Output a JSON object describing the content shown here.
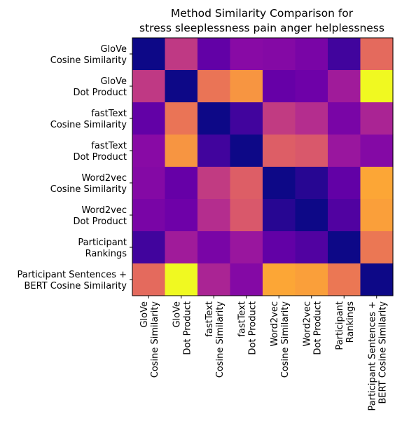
{
  "chart_data": {
    "type": "heatmap",
    "title_lines": [
      "Method Similarity Comparison for",
      "stress sleeplessness pain anger helplessness"
    ],
    "labels": [
      [
        "GloVe",
        "Cosine Similarity"
      ],
      [
        "GloVe",
        "Dot Product"
      ],
      [
        "fastText",
        "Cosine Similarity"
      ],
      [
        "fastText",
        "Dot Product"
      ],
      [
        "Word2vec",
        "Cosine Similarity"
      ],
      [
        "Word2vec",
        "Dot Product"
      ],
      [
        "Participant",
        "Rankings"
      ],
      [
        "Participant Sentences +",
        "BERT Cosine Similarity"
      ]
    ],
    "colormap": "plasma",
    "matrix": [
      [
        0.0,
        0.45,
        0.18,
        0.28,
        0.27,
        0.24,
        0.1,
        0.62
      ],
      [
        0.45,
        0.0,
        0.65,
        0.75,
        0.19,
        0.21,
        0.35,
        1.0
      ],
      [
        0.18,
        0.65,
        0.0,
        0.1,
        0.46,
        0.41,
        0.24,
        0.38
      ],
      [
        0.28,
        0.75,
        0.1,
        0.0,
        0.58,
        0.56,
        0.33,
        0.27
      ],
      [
        0.27,
        0.19,
        0.46,
        0.58,
        0.0,
        0.05,
        0.18,
        0.8
      ],
      [
        0.24,
        0.21,
        0.41,
        0.56,
        0.05,
        0.0,
        0.14,
        0.78
      ],
      [
        0.1,
        0.35,
        0.24,
        0.33,
        0.18,
        0.14,
        0.0,
        0.66
      ],
      [
        0.62,
        1.0,
        0.38,
        0.27,
        0.8,
        0.78,
        0.66,
        0.0
      ]
    ]
  }
}
